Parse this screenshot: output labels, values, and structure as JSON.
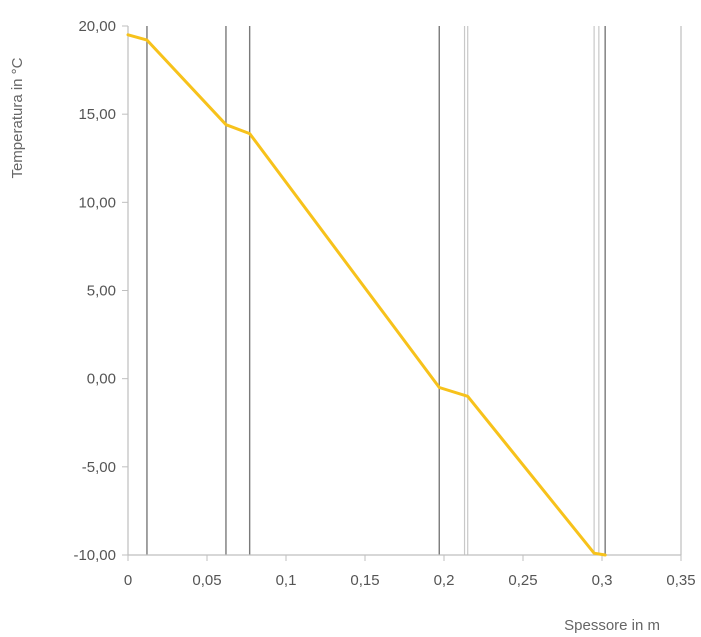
{
  "chart_data": {
    "type": "line",
    "title": "",
    "xlabel": "Spessore in m",
    "ylabel": "Temperatura in °C",
    "xlim": [
      0,
      0.35
    ],
    "ylim": [
      -10,
      20
    ],
    "x_ticks": [
      {
        "value": 0,
        "label": "0"
      },
      {
        "value": 0.05,
        "label": "0,05"
      },
      {
        "value": 0.1,
        "label": "0,1"
      },
      {
        "value": 0.15,
        "label": "0,15"
      },
      {
        "value": 0.2,
        "label": "0,2"
      },
      {
        "value": 0.25,
        "label": "0,25"
      },
      {
        "value": 0.3,
        "label": "0,3"
      },
      {
        "value": 0.35,
        "label": "0,35"
      }
    ],
    "y_ticks": [
      {
        "value": 20,
        "label": "20,00"
      },
      {
        "value": 15,
        "label": "15,00"
      },
      {
        "value": 10,
        "label": "10,00"
      },
      {
        "value": 5,
        "label": "5,00"
      },
      {
        "value": 0,
        "label": "0,00"
      },
      {
        "value": -5,
        "label": "-5,00"
      },
      {
        "value": -10,
        "label": "-10,00"
      }
    ],
    "layer_boundaries": [
      0.012,
      0.062,
      0.077,
      0.197,
      0.213,
      0.215,
      0.295,
      0.298,
      0.302
    ],
    "series": [
      {
        "color": "#f7c21b",
        "x": [
          0,
          0.012,
          0.062,
          0.077,
          0.197,
          0.215,
          0.295,
          0.302
        ],
        "y": [
          19.5,
          19.2,
          14.4,
          13.9,
          -0.5,
          -1.0,
          -9.9,
          -10.0
        ]
      }
    ],
    "grid": false,
    "colors": {
      "axis": "#bfbfbf",
      "boundary_dark": "#7a7a7a",
      "boundary_light": "#c8c8c8",
      "line": "#f7c21b"
    }
  }
}
